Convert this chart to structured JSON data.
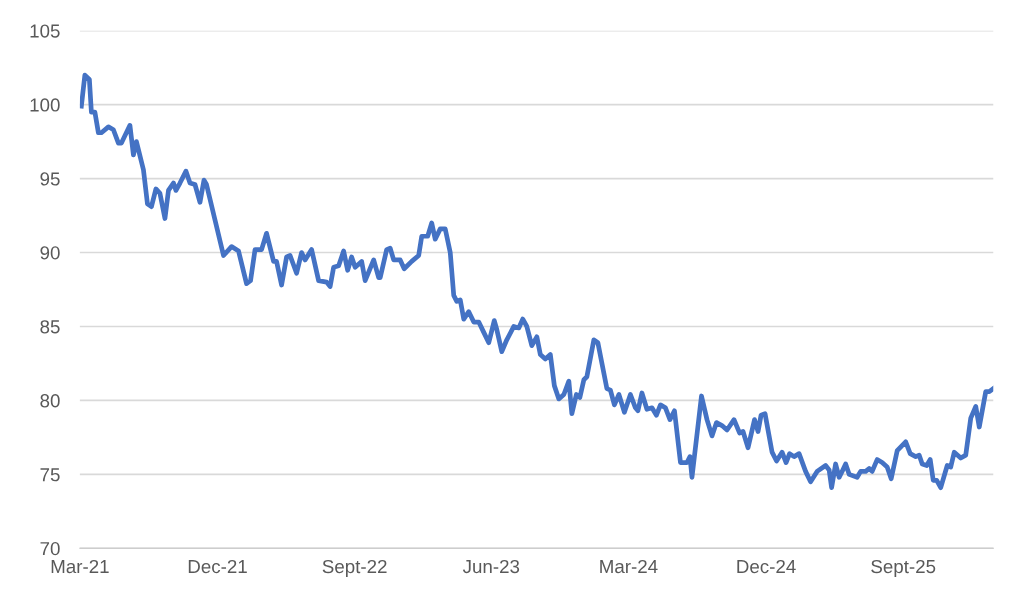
{
  "chart_data": {
    "type": "line",
    "x": [
      "2021-03-04",
      "2021-03-11",
      "2021-03-20",
      "2021-03-24",
      "2021-03-31",
      "2021-04-07",
      "2021-04-13",
      "2021-04-27",
      "2021-05-07",
      "2021-05-17",
      "2021-05-23",
      "2021-06-09",
      "2021-06-16",
      "2021-06-22",
      "2021-07-06",
      "2021-07-14",
      "2021-07-22",
      "2021-07-31",
      "2021-08-08",
      "2021-08-18",
      "2021-08-25",
      "2021-09-04",
      "2021-09-09",
      "2021-09-17",
      "2021-09-29",
      "2021-10-07",
      "2021-10-17",
      "2021-10-27",
      "2021-11-04",
      "2021-11-09",
      "2021-11-26",
      "2021-12-13",
      "2021-12-29",
      "2022-01-12",
      "2022-01-28",
      "2022-02-05",
      "2022-02-14",
      "2022-02-27",
      "2022-03-09",
      "2022-03-23",
      "2022-03-29",
      "2022-04-08",
      "2022-04-18",
      "2022-04-25",
      "2022-05-08",
      "2022-05-18",
      "2022-05-25",
      "2022-06-07",
      "2022-06-21",
      "2022-07-07",
      "2022-07-14",
      "2022-07-21",
      "2022-07-31",
      "2022-08-10",
      "2022-08-18",
      "2022-08-26",
      "2022-09-02",
      "2022-09-15",
      "2022-09-22",
      "2022-10-09",
      "2022-10-19",
      "2022-10-22",
      "2022-11-04",
      "2022-11-11",
      "2022-11-18",
      "2022-12-01",
      "2022-12-09",
      "2022-12-24",
      "2023-01-07",
      "2023-01-13",
      "2023-01-25",
      "2023-02-02",
      "2023-02-09",
      "2023-02-19",
      "2023-03-01",
      "2023-03-11",
      "2023-03-18",
      "2023-03-24",
      "2023-03-31",
      "2023-04-07",
      "2023-04-17",
      "2023-04-27",
      "2023-05-07",
      "2023-05-17",
      "2023-05-27",
      "2023-06-07",
      "2023-06-12",
      "2023-06-22",
      "2023-07-02",
      "2023-07-16",
      "2023-07-26",
      "2023-08-03",
      "2023-08-11",
      "2023-08-21",
      "2023-08-31",
      "2023-09-07",
      "2023-09-17",
      "2023-09-27",
      "2023-10-05",
      "2023-10-14",
      "2023-10-24",
      "2023-11-03",
      "2023-11-09",
      "2023-11-18",
      "2023-11-25",
      "2023-12-03",
      "2023-12-09",
      "2023-12-23",
      "2023-12-31",
      "2024-01-18",
      "2024-01-25",
      "2024-02-02",
      "2024-02-11",
      "2024-02-22",
      "2024-03-05",
      "2024-03-15",
      "2024-03-20",
      "2024-03-28",
      "2024-04-07",
      "2024-04-17",
      "2024-04-26",
      "2024-05-04",
      "2024-05-14",
      "2024-05-23",
      "2024-06-01",
      "2024-06-13",
      "2024-06-26",
      "2024-07-02",
      "2024-07-06",
      "2024-07-25",
      "2024-08-05",
      "2024-08-15",
      "2024-08-24",
      "2024-09-04",
      "2024-09-14",
      "2024-09-28",
      "2024-10-09",
      "2024-10-16",
      "2024-10-26",
      "2024-11-08",
      "2024-11-15",
      "2024-11-21",
      "2024-11-29",
      "2024-12-13",
      "2024-12-22",
      "2025-01-02",
      "2025-01-10",
      "2025-01-17",
      "2025-01-26",
      "2025-02-05",
      "2025-02-18",
      "2025-02-28",
      "2025-03-13",
      "2025-03-30",
      "2025-04-06",
      "2025-04-11",
      "2025-04-19",
      "2025-04-26",
      "2025-05-02",
      "2025-05-09",
      "2025-05-16",
      "2025-06-01",
      "2025-06-08",
      "2025-06-18",
      "2025-06-25",
      "2025-07-01",
      "2025-07-11",
      "2025-07-21",
      "2025-07-31",
      "2025-08-08",
      "2025-08-20",
      "2025-09-06",
      "2025-09-15",
      "2025-09-26",
      "2025-10-03",
      "2025-10-09",
      "2025-10-18",
      "2025-10-25",
      "2025-10-31",
      "2025-11-07",
      "2025-11-15",
      "2025-11-28",
      "2025-12-05",
      "2025-12-12",
      "2025-12-25",
      "2026-01-04",
      "2026-01-14",
      "2026-01-24",
      "2026-01-31",
      "2026-02-13",
      "2026-02-20",
      "2026-02-28"
    ],
    "series": [
      {
        "color": "#4472c4",
        "values": [
          99.9,
          102.0,
          101.7,
          99.5,
          99.5,
          98.1,
          98.1,
          98.5,
          98.3,
          97.4,
          97.4,
          98.6,
          96.6,
          97.5,
          95.6,
          93.3,
          93.1,
          94.3,
          94.0,
          92.3,
          94.2,
          94.7,
          94.2,
          94.7,
          95.5,
          94.7,
          94.6,
          93.4,
          94.9,
          94.6,
          92.2,
          89.8,
          90.4,
          90.1,
          87.9,
          88.1,
          90.2,
          90.2,
          91.3,
          89.4,
          89.4,
          87.8,
          89.7,
          89.8,
          88.6,
          90.0,
          89.5,
          90.2,
          88.1,
          88.0,
          87.7,
          89.0,
          89.1,
          90.1,
          88.8,
          89.7,
          89.0,
          89.4,
          88.1,
          89.5,
          88.3,
          88.3,
          90.2,
          90.3,
          89.5,
          89.5,
          88.9,
          89.4,
          89.8,
          91.1,
          91.1,
          92.0,
          90.9,
          91.6,
          91.6,
          90.0,
          87.1,
          86.7,
          86.8,
          85.5,
          86.0,
          85.3,
          85.3,
          84.6,
          83.9,
          85.4,
          84.8,
          83.3,
          84.1,
          85.0,
          84.9,
          85.5,
          85.0,
          83.7,
          84.3,
          83.1,
          82.8,
          83.1,
          81.0,
          80.1,
          80.4,
          81.3,
          79.1,
          80.4,
          80.2,
          81.4,
          81.6,
          84.1,
          83.9,
          80.8,
          80.7,
          79.7,
          80.4,
          79.2,
          80.4,
          79.5,
          79.3,
          80.5,
          79.4,
          79.5,
          79.0,
          79.7,
          79.5,
          78.7,
          79.3,
          75.8,
          75.8,
          76.2,
          74.8,
          80.3,
          78.7,
          77.6,
          78.5,
          78.3,
          78.0,
          78.7,
          77.8,
          77.9,
          76.8,
          78.7,
          77.9,
          79.0,
          79.1,
          76.5,
          75.9,
          76.5,
          75.8,
          76.4,
          76.2,
          76.4,
          75.2,
          74.5,
          75.2,
          75.6,
          75.3,
          74.1,
          75.7,
          74.8,
          75.2,
          75.7,
          75.0,
          74.8,
          75.2,
          75.2,
          75.4,
          75.2,
          76.0,
          75.8,
          75.5,
          74.7,
          76.6,
          77.2,
          76.4,
          76.2,
          76.3,
          75.7,
          75.6,
          76.0,
          74.6,
          74.6,
          74.1,
          75.6,
          75.5,
          76.5,
          76.1,
          76.3,
          78.8,
          79.6,
          78.2,
          80.6,
          80.6,
          80.8
        ]
      }
    ],
    "xlim": [
      "2021-03-01",
      "2026-02-28"
    ],
    "xticks": [
      {
        "value": "2021-03-01",
        "label": "Mar-21"
      },
      {
        "value": "2021-12-01",
        "label": "Dec-21"
      },
      {
        "value": "2022-09-01",
        "label": "Sept-22"
      },
      {
        "value": "2023-06-01",
        "label": "Jun-23"
      },
      {
        "value": "2024-03-01",
        "label": "Mar-24"
      },
      {
        "value": "2024-12-01",
        "label": "Dec-24"
      },
      {
        "value": "2025-09-01",
        "label": "Sept-25"
      }
    ],
    "ylim": [
      70,
      105
    ],
    "yticks": [
      70,
      75,
      80,
      85,
      90,
      95,
      100,
      105
    ],
    "grid": "y",
    "marker": "none",
    "line_style": "solid"
  }
}
